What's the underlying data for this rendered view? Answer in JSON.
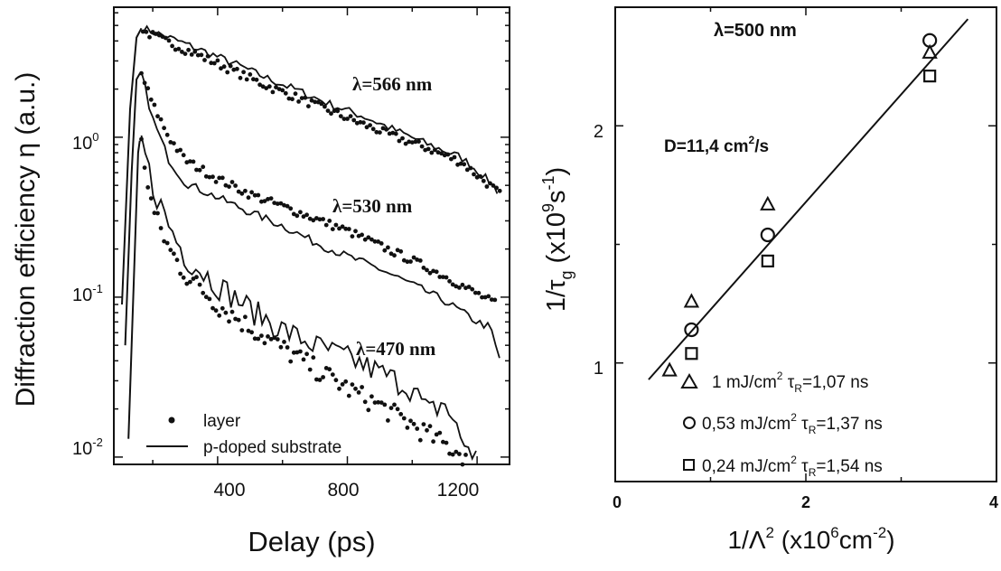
{
  "chart_data": [
    {
      "type": "line",
      "yscale": "log",
      "xlabel": "Delay (ps)",
      "ylabel": "Diffraction efficiency η (a.u.)",
      "xlim": [
        80,
        1300
      ],
      "ylim": [
        0.009,
        6.5
      ],
      "x_ticks": [
        400,
        800,
        1200
      ],
      "x_tick_labels": [
        "400",
        "800",
        "1200"
      ],
      "y_ticks": [
        0.01,
        0.1,
        1
      ],
      "y_tick_labels": [
        {
          "base": "10",
          "exp": "-2"
        },
        {
          "base": "10",
          "exp": "-1"
        },
        {
          "base": "10",
          "exp": "0"
        }
      ],
      "legend": {
        "position": "bottom-left",
        "entries": [
          {
            "label": "layer",
            "marker": "dot"
          },
          {
            "label": "p-doped substrate",
            "marker": "line"
          }
        ]
      },
      "annotations": [
        {
          "text": "λ=566 nm",
          "series": "566"
        },
        {
          "text": "λ=530 nm",
          "series": "530"
        },
        {
          "text": "λ=470 nm",
          "series": "470"
        }
      ],
      "series": [
        {
          "key": "566",
          "rise": [
            [
              105,
              0.09
            ],
            [
              130,
              1.5
            ],
            [
              150,
              4.2
            ],
            [
              165,
              4.8
            ]
          ],
          "layer": [
            [
              170,
              4.6
            ],
            [
              250,
              3.9
            ],
            [
              350,
              3.2
            ],
            [
              450,
              2.6
            ],
            [
              550,
              2.1
            ],
            [
              650,
              1.75
            ],
            [
              750,
              1.45
            ],
            [
              850,
              1.2
            ],
            [
              950,
              1.0
            ],
            [
              1050,
              0.85
            ],
            [
              1150,
              0.7
            ],
            [
              1250,
              0.48
            ],
            [
              1270,
              0.44
            ]
          ],
          "substrate": [
            [
              170,
              4.8
            ],
            [
              250,
              4.2
            ],
            [
              350,
              3.5
            ],
            [
              450,
              2.9
            ],
            [
              550,
              2.35
            ],
            [
              650,
              1.95
            ],
            [
              750,
              1.6
            ],
            [
              850,
              1.35
            ],
            [
              950,
              1.1
            ],
            [
              1050,
              0.9
            ],
            [
              1150,
              0.75
            ],
            [
              1200,
              0.62
            ],
            [
              1250,
              0.5
            ],
            [
              1270,
              0.44
            ]
          ]
        },
        {
          "key": "530",
          "rise": [
            [
              115,
              0.05
            ],
            [
              135,
              0.6
            ],
            [
              150,
              2.3
            ],
            [
              160,
              2.5
            ]
          ],
          "layer": [
            [
              165,
              2.5
            ],
            [
              200,
              1.6
            ],
            [
              250,
              1.0
            ],
            [
              300,
              0.72
            ],
            [
              400,
              0.55
            ],
            [
              500,
              0.44
            ],
            [
              600,
              0.37
            ],
            [
              700,
              0.31
            ],
            [
              800,
              0.26
            ],
            [
              900,
              0.21
            ],
            [
              1000,
              0.17
            ],
            [
              1100,
              0.135
            ],
            [
              1200,
              0.105
            ],
            [
              1260,
              0.09
            ]
          ],
          "substrate": [
            [
              165,
              2.5
            ],
            [
              200,
              1.3
            ],
            [
              250,
              0.72
            ],
            [
              300,
              0.52
            ],
            [
              400,
              0.42
            ],
            [
              500,
              0.34
            ],
            [
              600,
              0.28
            ],
            [
              700,
              0.22
            ],
            [
              800,
              0.18
            ],
            [
              900,
              0.15
            ],
            [
              1000,
              0.12
            ],
            [
              1100,
              0.095
            ],
            [
              1200,
              0.07
            ],
            [
              1240,
              0.065
            ],
            [
              1270,
              0.04
            ]
          ]
        },
        {
          "key": "470",
          "rise": [
            [
              125,
              0.013
            ],
            [
              145,
              0.2
            ],
            [
              155,
              0.8
            ],
            [
              160,
              0.95
            ]
          ],
          "layer": [
            [
              165,
              0.9
            ],
            [
              200,
              0.35
            ],
            [
              250,
              0.2
            ],
            [
              300,
              0.14
            ],
            [
              400,
              0.09
            ],
            [
              500,
              0.065
            ],
            [
              600,
              0.048
            ],
            [
              700,
              0.036
            ],
            [
              800,
              0.027
            ],
            [
              900,
              0.021
            ],
            [
              1000,
              0.016
            ],
            [
              1100,
              0.012
            ],
            [
              1170,
              0.01
            ]
          ],
          "substrate": [
            [
              165,
              0.95
            ],
            [
              200,
              0.5
            ],
            [
              250,
              0.28
            ],
            [
              300,
              0.18
            ],
            [
              400,
              0.12
            ],
            [
              500,
              0.085
            ],
            [
              600,
              0.063
            ],
            [
              700,
              0.05
            ],
            [
              800,
              0.042
            ],
            [
              900,
              0.034
            ],
            [
              1000,
              0.027
            ],
            [
              1050,
              0.019
            ],
            [
              1100,
              0.022
            ],
            [
              1150,
              0.013
            ],
            [
              1200,
              0.01
            ]
          ]
        }
      ]
    },
    {
      "type": "scatter",
      "xlabel": {
        "base": "1/Λ",
        "sup": "2",
        "rest": " (x10",
        "sup2": "6",
        "rest2": "cm",
        "sup3": "-2",
        "close": ")"
      },
      "ylabel": {
        "base": "1/τ",
        "sub": "g",
        "rest": " (x10",
        "sup": "9",
        "rest2": "s",
        "sup2": "-1",
        "close": ")"
      },
      "xlim": [
        0,
        4
      ],
      "ylim": [
        0.5,
        2.5
      ],
      "x_ticks": [
        0,
        2,
        4
      ],
      "x_tick_labels": [
        "0",
        "2",
        "4"
      ],
      "y_ticks": [
        1,
        2
      ],
      "y_tick_labels": [
        "1",
        "2"
      ],
      "annotations": [
        {
          "text": "λ=500 nm"
        },
        {
          "base": "D=11,4 cm",
          "sup": "2",
          "rest": "/s"
        }
      ],
      "fit_line": [
        [
          0.35,
          0.93
        ],
        [
          3.7,
          2.45
        ]
      ],
      "series": [
        {
          "marker": "triangle",
          "pre": "1 mJ/cm",
          "sup": "2",
          "mid": " τ",
          "sub": "R",
          "post": "=1,07 ns",
          "points": [
            [
              0.57,
              0.97
            ],
            [
              0.8,
              1.26
            ],
            [
              1.6,
              1.67
            ],
            [
              3.3,
              2.31
            ]
          ]
        },
        {
          "marker": "circle",
          "pre": "0,53 mJ/cm",
          "sup": "2",
          "mid": " τ",
          "sub": "R",
          "post": "=1,37 ns",
          "points": [
            [
              0.8,
              1.14
            ],
            [
              1.6,
              1.54
            ],
            [
              3.3,
              2.36
            ]
          ]
        },
        {
          "marker": "square",
          "pre": "0,24 mJ/cm",
          "sup": "2",
          "mid": " τ",
          "sub": "R",
          "post": "=1,54 ns",
          "points": [
            [
              0.8,
              1.04
            ],
            [
              1.6,
              1.43
            ],
            [
              3.3,
              2.21
            ]
          ]
        }
      ]
    }
  ]
}
